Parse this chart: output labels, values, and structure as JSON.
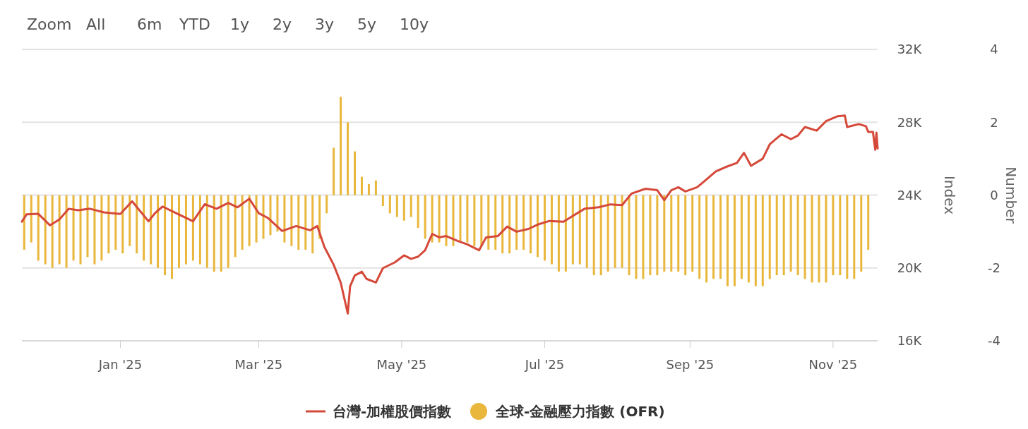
{
  "chart_data": {
    "type": "line",
    "annotations": [
      "Zoom",
      "All",
      "6m",
      "YTD",
      "1y",
      "2y",
      "3y",
      "5y",
      "10y"
    ],
    "ylabel": "Index",
    "y2label": "Number",
    "xlim": [
      "2024-11-20",
      "2025-11-20"
    ],
    "xticks": [
      {
        "value": "2025-01-01",
        "label": "Jan '25"
      },
      {
        "value": "2025-03-01",
        "label": "Mar '25"
      },
      {
        "value": "2025-05-01",
        "label": "May '25"
      },
      {
        "value": "2025-07-01",
        "label": "Jul '25"
      },
      {
        "value": "2025-09-01",
        "label": "Sep '25"
      },
      {
        "value": "2025-11-01",
        "label": "Nov '25"
      }
    ],
    "ylim": [
      16000,
      32000
    ],
    "yticks": [
      {
        "value": 16000,
        "label": "16K"
      },
      {
        "value": 20000,
        "label": "20K"
      },
      {
        "value": 24000,
        "label": "24K"
      },
      {
        "value": 28000,
        "label": "28K"
      },
      {
        "value": 32000,
        "label": "32K"
      }
    ],
    "y2lim": [
      -4,
      4
    ],
    "y2ticks": [
      -4,
      -2,
      0,
      2,
      4
    ],
    "grid": "y",
    "legend": "bottom",
    "series": [
      {
        "name": "全球-金融壓力指數 (OFR)",
        "type": "bar",
        "axis": "y2",
        "color": "#e9b73c",
        "x": [
          "2024-11-21",
          "2024-11-24",
          "2024-11-27",
          "2024-11-30",
          "2024-12-03",
          "2024-12-06",
          "2024-12-09",
          "2024-12-12",
          "2024-12-15",
          "2024-12-18",
          "2024-12-21",
          "2024-12-24",
          "2024-12-27",
          "2024-12-30",
          "2025-01-02",
          "2025-01-05",
          "2025-01-08",
          "2025-01-11",
          "2025-01-14",
          "2025-01-17",
          "2025-01-20",
          "2025-01-23",
          "2025-01-26",
          "2025-01-29",
          "2025-02-01",
          "2025-02-04",
          "2025-02-07",
          "2025-02-10",
          "2025-02-13",
          "2025-02-16",
          "2025-02-19",
          "2025-02-22",
          "2025-02-25",
          "2025-02-28",
          "2025-03-03",
          "2025-03-06",
          "2025-03-09",
          "2025-03-12",
          "2025-03-15",
          "2025-03-18",
          "2025-03-21",
          "2025-03-24",
          "2025-03-27",
          "2025-03-30",
          "2025-04-02",
          "2025-04-05",
          "2025-04-08",
          "2025-04-11",
          "2025-04-14",
          "2025-04-17",
          "2025-04-20",
          "2025-04-23",
          "2025-04-26",
          "2025-04-29",
          "2025-05-02",
          "2025-05-05",
          "2025-05-08",
          "2025-05-11",
          "2025-05-14",
          "2025-05-17",
          "2025-05-20",
          "2025-05-23",
          "2025-05-26",
          "2025-05-29",
          "2025-06-01",
          "2025-06-04",
          "2025-06-07",
          "2025-06-10",
          "2025-06-13",
          "2025-06-16",
          "2025-06-19",
          "2025-06-22",
          "2025-06-25",
          "2025-06-28",
          "2025-07-01",
          "2025-07-04",
          "2025-07-07",
          "2025-07-10",
          "2025-07-13",
          "2025-07-16",
          "2025-07-19",
          "2025-07-22",
          "2025-07-25",
          "2025-07-28",
          "2025-07-31",
          "2025-08-03",
          "2025-08-06",
          "2025-08-09",
          "2025-08-12",
          "2025-08-15",
          "2025-08-18",
          "2025-08-21",
          "2025-08-24",
          "2025-08-27",
          "2025-08-30",
          "2025-09-02",
          "2025-09-05",
          "2025-09-08",
          "2025-09-11",
          "2025-09-14",
          "2025-09-17",
          "2025-09-20",
          "2025-09-23",
          "2025-09-26",
          "2025-09-29",
          "2025-10-02",
          "2025-10-05",
          "2025-10-08",
          "2025-10-11",
          "2025-10-14",
          "2025-10-17",
          "2025-10-20",
          "2025-10-23",
          "2025-10-26",
          "2025-10-29",
          "2025-11-01",
          "2025-11-04",
          "2025-11-07",
          "2025-11-10",
          "2025-11-13",
          "2025-11-16"
        ],
        "values": [
          -1.5,
          -1.3,
          -1.8,
          -1.9,
          -2.0,
          -1.9,
          -2.0,
          -1.8,
          -1.9,
          -1.7,
          -1.9,
          -1.8,
          -1.6,
          -1.5,
          -1.6,
          -1.4,
          -1.6,
          -1.8,
          -1.9,
          -2.0,
          -2.2,
          -2.3,
          -2.0,
          -1.9,
          -1.8,
          -1.9,
          -2.0,
          -2.1,
          -2.1,
          -2.0,
          -1.7,
          -1.5,
          -1.4,
          -1.3,
          -1.2,
          -1.1,
          -1.0,
          -1.3,
          -1.4,
          -1.5,
          -1.5,
          -1.6,
          -1.2,
          -0.5,
          1.3,
          2.7,
          2.0,
          1.2,
          0.5,
          0.3,
          0.4,
          -0.3,
          -0.5,
          -0.6,
          -0.7,
          -0.6,
          -0.9,
          -1.2,
          -1.3,
          -1.3,
          -1.4,
          -1.4,
          -1.3,
          -1.3,
          -1.4,
          -1.4,
          -1.5,
          -1.5,
          -1.6,
          -1.6,
          -1.5,
          -1.5,
          -1.6,
          -1.7,
          -1.8,
          -1.9,
          -2.1,
          -2.1,
          -1.9,
          -1.9,
          -2.0,
          -2.2,
          -2.2,
          -2.1,
          -2.0,
          -2.0,
          -2.2,
          -2.3,
          -2.3,
          -2.2,
          -2.2,
          -2.1,
          -2.1,
          -2.1,
          -2.2,
          -2.1,
          -2.3,
          -2.4,
          -2.3,
          -2.3,
          -2.5,
          -2.5,
          -2.3,
          -2.4,
          -2.5,
          -2.5,
          -2.3,
          -2.2,
          -2.2,
          -2.1,
          -2.2,
          -2.3,
          -2.4,
          -2.4,
          -2.4,
          -2.2,
          -2.2,
          -2.3,
          -2.3,
          -2.1,
          -1.5
        ]
      },
      {
        "name": "台灣-加權股價指數",
        "color": "#d5493a",
        "x": [
          "2024-11-20",
          "2024-11-22",
          "2024-11-27",
          "2024-12-02",
          "2024-12-06",
          "2024-12-10",
          "2024-12-14",
          "2024-12-19",
          "2024-12-25",
          "2025-01-01",
          "2025-01-06",
          "2025-01-13",
          "2025-01-16",
          "2025-01-19",
          "2025-02-01",
          "2025-02-06",
          "2025-02-11",
          "2025-02-16",
          "2025-02-20",
          "2025-02-25",
          "2025-03-01",
          "2025-03-05",
          "2025-03-11",
          "2025-03-17",
          "2025-03-23",
          "2025-03-26",
          "2025-03-29",
          "2025-04-02",
          "2025-04-05",
          "2025-04-08",
          "2025-04-09",
          "2025-04-11",
          "2025-04-14",
          "2025-04-16",
          "2025-04-20",
          "2025-04-23",
          "2025-04-28",
          "2025-05-02",
          "2025-05-05",
          "2025-05-08",
          "2025-05-11",
          "2025-05-14",
          "2025-05-17",
          "2025-05-20",
          "2025-05-25",
          "2025-05-29",
          "2025-06-03",
          "2025-06-06",
          "2025-06-11",
          "2025-06-15",
          "2025-06-19",
          "2025-06-24",
          "2025-06-28",
          "2025-07-03",
          "2025-07-09",
          "2025-07-13",
          "2025-07-18",
          "2025-07-24",
          "2025-07-29",
          "2025-08-03",
          "2025-08-07",
          "2025-08-13",
          "2025-08-18",
          "2025-08-21",
          "2025-08-24",
          "2025-08-27",
          "2025-08-30",
          "2025-09-04",
          "2025-09-07",
          "2025-09-12",
          "2025-09-16",
          "2025-09-21",
          "2025-09-24",
          "2025-09-27",
          "2025-10-02",
          "2025-10-05",
          "2025-10-10",
          "2025-10-14",
          "2025-10-17",
          "2025-10-20",
          "2025-10-25",
          "2025-10-29",
          "2025-11-03",
          "2025-11-06",
          "2025-11-07",
          "2025-11-12",
          "2025-11-15",
          "2025-11-16",
          "2025-11-18",
          "2025-11-19",
          "2025-11-19T12:00",
          "2025-11-20"
        ],
        "values": [
          22540,
          22940,
          22970,
          22340,
          22660,
          23250,
          23170,
          23250,
          23050,
          22960,
          23660,
          22560,
          23040,
          23370,
          22560,
          23500,
          23250,
          23570,
          23330,
          23800,
          23010,
          22740,
          22030,
          22300,
          22070,
          22300,
          21160,
          20170,
          19190,
          17500,
          19000,
          19590,
          19790,
          19400,
          19200,
          19990,
          20300,
          20690,
          20500,
          20620,
          20970,
          21870,
          21680,
          21750,
          21480,
          21290,
          20970,
          21680,
          21750,
          22270,
          21990,
          22140,
          22380,
          22580,
          22540,
          22860,
          23250,
          23330,
          23490,
          23450,
          24080,
          24350,
          24270,
          23720,
          24270,
          24430,
          24200,
          24430,
          24750,
          25300,
          25530,
          25770,
          26320,
          25610,
          26000,
          26790,
          27340,
          27070,
          27270,
          27740,
          27540,
          28060,
          28330,
          28370,
          27740,
          27900,
          27780,
          27470,
          27470,
          26490,
          27430,
          26560
        ]
      }
    ]
  }
}
